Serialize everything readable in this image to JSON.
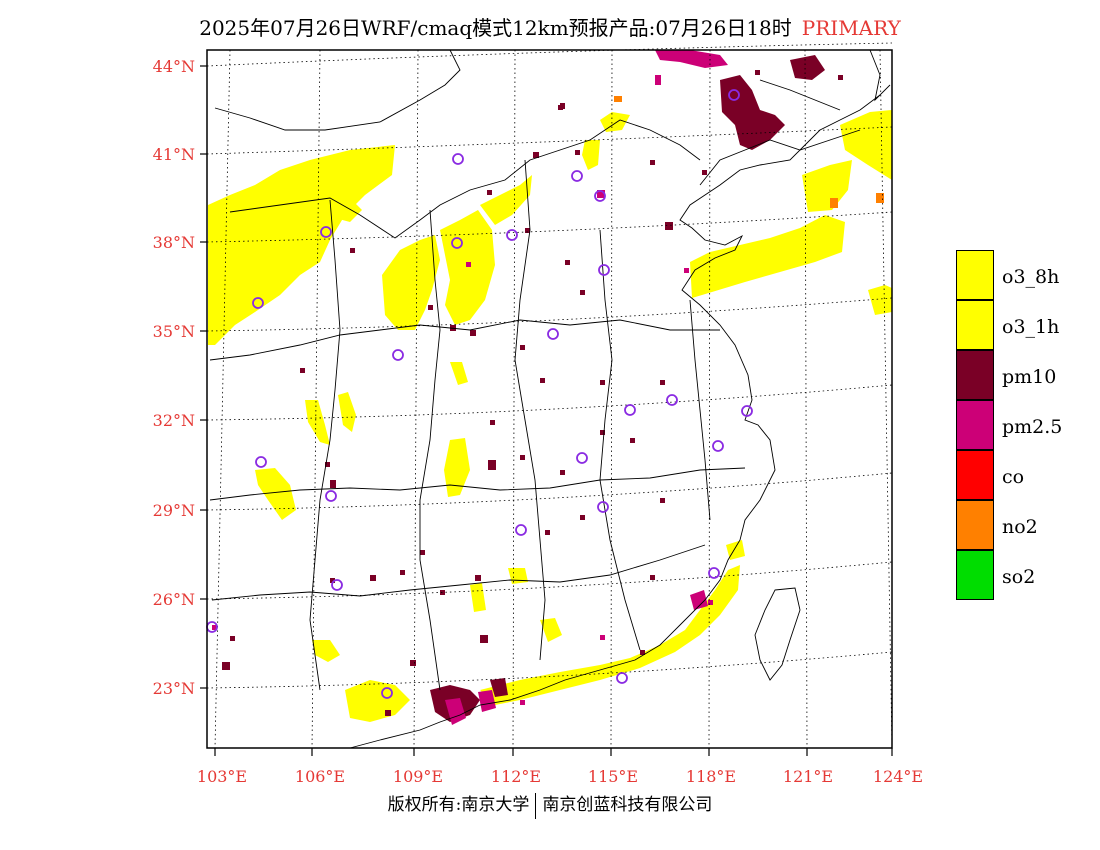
{
  "title": {
    "main": "2025年07月26日WRF/cmaq模式12km预报产品:07月26日18时",
    "tag": "PRIMARY"
  },
  "axes": {
    "lat_labels": [
      "44°N",
      "41°N",
      "38°N",
      "35°N",
      "32°N",
      "29°N",
      "26°N",
      "23°N"
    ],
    "lon_labels": [
      "103°E",
      "106°E",
      "109°E",
      "112°E",
      "115°E",
      "118°E",
      "121°E",
      "124°E"
    ]
  },
  "legend": {
    "items": [
      {
        "label": "o3_8h",
        "color": "#ffff00"
      },
      {
        "label": "o3_1h",
        "color": "#ffff00"
      },
      {
        "label": "pm10",
        "color": "#7a0026"
      },
      {
        "label": "pm2.5",
        "color": "#cc0077"
      },
      {
        "label": "co",
        "color": "#ff0000"
      },
      {
        "label": "no2",
        "color": "#ff8000"
      },
      {
        "label": "so2",
        "color": "#00dd00"
      }
    ]
  },
  "footer": {
    "left": "版权所有:南京大学",
    "right": "南京创蓝科技有限公司"
  },
  "colors": {
    "o3": "#ffff00",
    "pm10": "#7a0026",
    "pm25": "#cc0077",
    "no2": "#ff8000",
    "station": "#8a2be2",
    "label": "#e53935"
  }
}
